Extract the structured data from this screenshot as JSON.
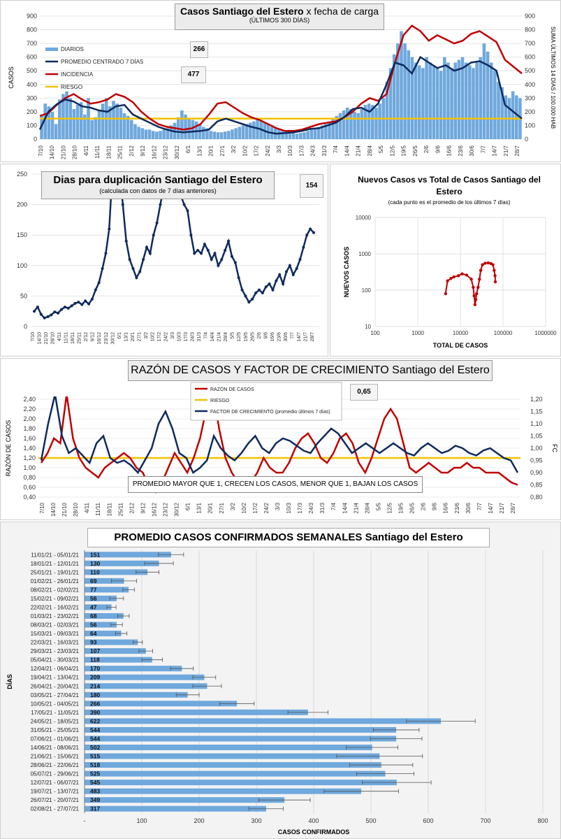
{
  "chart_data": [
    {
      "id": "chart1",
      "type": "bar",
      "title_bold": "Casos Santiago del Estero",
      "title_rest": " x fecha de carga",
      "subtitle": "(ÚLTIMOS 300 DÍAS)",
      "ylabel": "CASOS",
      "y2label": "SUMA ÚLTIMOS 14 DÍAS / 100.000 HAB",
      "ylim": [
        0,
        900
      ],
      "yticks": [
        "0",
        "100",
        "200",
        "300",
        "400",
        "500",
        "600",
        "700",
        "800",
        "900"
      ],
      "legend": [
        "DIARIOS",
        "PROMEDIO CENTRADO 7 DÍAS",
        "INCIDENCIA",
        "RIESGO"
      ],
      "value_boxes": [
        "266",
        "477"
      ],
      "x_labels": [
        "7/10",
        "14/10",
        "21/10",
        "28/10",
        "4/11",
        "11/11",
        "18/11",
        "25/11",
        "2/12",
        "9/12",
        "16/12",
        "23/12",
        "30/12",
        "6/1",
        "13/1",
        "20/1",
        "27/1",
        "3/2",
        "10/2",
        "17/2",
        "24/2",
        "3/3",
        "10/3",
        "17/3",
        "24/3",
        "31/3",
        "7/4",
        "14/4",
        "21/4",
        "28/4",
        "5/5",
        "12/5",
        "19/5",
        "26/5",
        "2/6",
        "9/6",
        "16/6",
        "23/6",
        "30/6",
        "7/7",
        "14/7",
        "21/7",
        "28/7"
      ],
      "series": [
        {
          "name": "PROMEDIO CENTRADO 7 DÍAS",
          "color": "#0f2a5e",
          "values": [
            70,
            200,
            255,
            290,
            275,
            240,
            230,
            210,
            200,
            240,
            250,
            180,
            150,
            120,
            90,
            70,
            55,
            50,
            55,
            60,
            70,
            130,
            150,
            130,
            110,
            90,
            75,
            50,
            40,
            45,
            50,
            60,
            75,
            80,
            100,
            120,
            160,
            220,
            230,
            200,
            260,
            400,
            560,
            540,
            480,
            600,
            560,
            520,
            540,
            500,
            520,
            560,
            570,
            540,
            500,
            250,
            200,
            150
          ]
        },
        {
          "name": "INCIDENCIA",
          "color": "#c00000",
          "values": [
            170,
            190,
            250,
            300,
            330,
            290,
            260,
            270,
            290,
            330,
            310,
            270,
            200,
            150,
            110,
            90,
            80,
            70,
            80,
            110,
            180,
            260,
            270,
            230,
            190,
            160,
            140,
            110,
            80,
            60,
            60,
            70,
            90,
            110,
            120,
            130,
            160,
            200,
            260,
            300,
            280,
            330,
            560,
            760,
            830,
            790,
            720,
            760,
            730,
            700,
            720,
            770,
            790,
            750,
            710,
            580,
            530,
            480
          ]
        },
        {
          "name": "RIESGO",
          "color": "#f2c200",
          "values": [
            150,
            150
          ]
        }
      ],
      "daily": [
        170,
        260,
        240,
        200,
        110,
        290,
        330,
        350,
        300,
        220,
        250,
        270,
        180,
        300,
        140,
        160,
        210,
        260,
        300,
        240,
        280,
        260,
        230,
        190,
        170,
        140,
        110,
        90,
        80,
        70,
        70,
        60,
        55,
        60,
        70,
        80,
        100,
        120,
        160,
        210,
        180,
        150,
        140,
        130,
        110,
        90,
        80,
        60,
        55,
        50,
        50,
        55,
        60,
        70,
        80,
        90,
        100,
        110,
        120,
        130,
        150,
        140,
        120,
        110,
        90,
        80,
        70,
        60,
        55,
        50,
        45,
        40,
        45,
        50,
        60,
        70,
        80,
        90,
        100,
        110,
        130,
        150,
        170,
        190,
        210,
        230,
        220,
        200,
        190,
        220,
        250,
        260,
        250,
        230,
        260,
        300,
        420,
        520,
        620,
        700,
        790,
        700,
        650,
        600,
        560,
        540,
        520,
        600,
        560,
        540,
        520,
        500,
        600,
        560,
        520,
        560,
        580,
        600,
        560,
        540,
        520,
        560,
        600,
        700,
        640,
        560,
        500,
        420,
        380,
        320,
        300,
        350,
        320,
        300
      ]
    },
    {
      "id": "chart2",
      "type": "line",
      "title": "Dias para duplicación Santiago del Estero",
      "subtitle": "(calculada con datos de 7 días anteriores)",
      "value_box": "154",
      "ylim": [
        0,
        250
      ],
      "yticks": [
        "0",
        "50",
        "100",
        "150",
        "200",
        "250"
      ],
      "x_labels": [
        "7/10",
        "14/10",
        "21/10",
        "28/10",
        "4/11",
        "11/11",
        "18/11",
        "25/11",
        "2/12",
        "9/12",
        "16/12",
        "23/12",
        "30/12",
        "6/1",
        "13/1",
        "20/1",
        "27/1",
        "3/2",
        "10/2",
        "17/2",
        "24/2",
        "3/3",
        "10/3",
        "17/3",
        "24/3",
        "31/3",
        "7/4",
        "14/4",
        "21/4",
        "28/4",
        "5/5",
        "12/5",
        "19/5",
        "26/5",
        "2/6",
        "9/6",
        "16/6",
        "23/6",
        "30/6",
        "7/7",
        "14/7",
        "21/7",
        "28/7"
      ],
      "color": "#0f2a5e",
      "values": [
        25,
        32,
        20,
        14,
        16,
        19,
        24,
        22,
        28,
        32,
        30,
        34,
        38,
        40,
        36,
        42,
        37,
        45,
        60,
        72,
        95,
        120,
        160,
        260,
        300,
        260,
        200,
        140,
        110,
        95,
        80,
        90,
        110,
        130,
        120,
        150,
        170,
        200,
        230,
        260,
        280,
        260,
        240,
        215,
        200,
        190,
        150,
        120,
        125,
        120,
        135,
        125,
        110,
        120,
        100,
        110,
        125,
        140,
        115,
        105,
        80,
        60,
        50,
        40,
        45,
        55,
        60,
        55,
        65,
        70,
        60,
        75,
        85,
        70,
        90,
        100,
        85,
        95,
        110,
        130,
        150,
        160,
        154
      ]
    },
    {
      "id": "chart3",
      "type": "scatter",
      "title": "Nuevos Casos vs Total de Casos Santiago del Estero",
      "subtitle": "(cada punto es el promedio de los últimos 7 días)",
      "xlabel": "TOTAL DE CASOS",
      "ylabel": "NUEVOS CASOS",
      "x_scale": "log",
      "y_scale": "log",
      "xlim": [
        100,
        1000000
      ],
      "ylim": [
        10,
        10000
      ],
      "xticks": [
        "100",
        "1000",
        "10000",
        "100000",
        "1000000"
      ],
      "yticks": [
        "10",
        "100",
        "1000",
        "10000"
      ],
      "color": "#c00000",
      "points": [
        [
          4500,
          80
        ],
        [
          5000,
          180
        ],
        [
          6000,
          210
        ],
        [
          7000,
          230
        ],
        [
          9000,
          250
        ],
        [
          11000,
          280
        ],
        [
          14000,
          260
        ],
        [
          18000,
          200
        ],
        [
          20000,
          120
        ],
        [
          21000,
          70
        ],
        [
          22000,
          40
        ],
        [
          23000,
          55
        ],
        [
          24000,
          80
        ],
        [
          26000,
          120
        ],
        [
          28000,
          200
        ],
        [
          30000,
          350
        ],
        [
          33000,
          500
        ],
        [
          38000,
          550
        ],
        [
          45000,
          560
        ],
        [
          52000,
          540
        ],
        [
          58000,
          500
        ],
        [
          62000,
          350
        ],
        [
          65000,
          250
        ],
        [
          66000,
          170
        ]
      ]
    },
    {
      "id": "chart4",
      "type": "line",
      "title_main": "RAZÓN DE CASOS Y FACTOR DE CRECIMIENTO",
      "title_rest": " Santiago del Estero",
      "ylabel": "RAZÓN DE CASOS",
      "y2label": "FC",
      "value_box": "0,65",
      "annotation": "PROMEDIO MAYOR QUE 1, CRECEN LOS CASOS, MENOR QUE 1, BAJAN LOS CASOS",
      "ylim": [
        0.4,
        2.4
      ],
      "yticks": [
        "0,40",
        "0,60",
        "0,80",
        "1,00",
        "1,20",
        "1,40",
        "1,60",
        "1,80",
        "2,00",
        "2,20",
        "2,40"
      ],
      "y2lim": [
        0.8,
        1.2
      ],
      "y2ticks": [
        "0,80",
        "0,85",
        "0,90",
        "0,95",
        "1,00",
        "1,05",
        "1,10",
        "1,15",
        "1,20"
      ],
      "legend": [
        "RAZÓN DE CASOS",
        "RIESGO",
        "FACTOR DE CRECIMIENTO (promedio últimos 7 días)"
      ],
      "x_labels": [
        "7/10",
        "14/10",
        "21/10",
        "28/10",
        "4/11",
        "11/11",
        "18/11",
        "25/11",
        "2/12",
        "9/12",
        "16/12",
        "23/12",
        "30/12",
        "6/1",
        "13/1",
        "20/1",
        "27/1",
        "3/2",
        "10/2",
        "17/2",
        "24/2",
        "3/3",
        "10/3",
        "17/3",
        "24/3",
        "31/3",
        "7/4",
        "14/4",
        "21/4",
        "28/4",
        "5/5",
        "12/5",
        "19/5",
        "26/5",
        "2/6",
        "9/6",
        "16/6",
        "23/6",
        "30/6",
        "7/7",
        "14/7",
        "21/7",
        "28/7"
      ],
      "series": [
        {
          "name": "RAZÓN DE CASOS",
          "color": "#c00000",
          "axis": "left",
          "values": [
            1.1,
            1.3,
            1.6,
            1.5,
            2.5,
            1.6,
            1.2,
            1.0,
            0.9,
            0.8,
            1.0,
            1.1,
            1.2,
            1.3,
            1.2,
            1.0,
            0.9,
            0.6,
            0.5,
            0.7,
            1.0,
            1.3,
            1.1,
            0.9,
            1.2,
            1.6,
            2.2,
            2.6,
            1.8,
            1.2,
            0.9,
            0.7,
            0.6,
            0.7,
            0.9,
            1.2,
            1.0,
            0.9,
            0.9,
            1.1,
            1.4,
            1.6,
            1.7,
            1.5,
            1.2,
            1.1,
            1.3,
            1.6,
            1.7,
            1.5,
            1.1,
            0.9,
            1.2,
            1.6,
            2.0,
            2.2,
            2.0,
            1.5,
            1.0,
            0.9,
            1.0,
            1.1,
            1.0,
            0.9,
            0.9,
            1.0,
            1.0,
            1.1,
            1.0,
            1.0,
            0.9,
            0.9,
            0.9,
            0.8,
            0.7,
            0.65
          ]
        },
        {
          "name": "FACTOR DE CRECIMIENTO (promedio últimos 7 días)",
          "color": "#0f2a5e",
          "axis": "right",
          "values": [
            0.95,
            1.1,
            1.22,
            1.05,
            0.98,
            1.0,
            0.97,
            0.94,
            1.02,
            1.05,
            0.96,
            0.94,
            0.95,
            0.93,
            0.9,
            0.95,
            1.0,
            1.1,
            1.15,
            1.08,
            0.98,
            0.96,
            0.9,
            0.92,
            0.95,
            1.05,
            1.0,
            0.97,
            0.95,
            0.98,
            1.02,
            1.05,
            1.0,
            0.98,
            1.02,
            1.04,
            1.03,
            1.01,
            0.99,
            0.98,
            1.02,
            1.05,
            1.08,
            1.06,
            1.02,
            0.98,
            1.0,
            1.02,
            1.0,
            0.98,
            1.0,
            1.02,
            1.0,
            0.98,
            0.97,
            1.0,
            1.02,
            1.0,
            0.98,
            0.99,
            1.01,
            1.0,
            0.98,
            0.97,
            0.99,
            1.0,
            0.98,
            0.96,
            0.95,
            0.9
          ]
        },
        {
          "name": "RIESGO",
          "color": "#f2c200",
          "axis": "left",
          "values": [
            1.2,
            1.2
          ]
        }
      ]
    },
    {
      "id": "chart5",
      "type": "bar",
      "orientation": "horizontal",
      "title": "PROMEDIO CASOS CONFIRMADOS SEMANALES Santiago del Estero",
      "xlabel": "CASOS CONFIRMADOS",
      "ylabel": "DÍAS",
      "xlim": [
        0,
        800
      ],
      "xticks": [
        "-",
        "100",
        "200",
        "300",
        "400",
        "500",
        "600",
        "700",
        "800"
      ],
      "bar_color": "#6fa8dc",
      "categories": [
        "11/01/21 - 05/01/21",
        "18/01/21 - 12/01/21",
        "25/01/21 - 19/01/21",
        "01/02/21 - 26/01/21",
        "08/02/21 - 02/02/21",
        "15/02/21 - 09/02/21",
        "22/02/21 - 16/02/21",
        "01/03/21 - 23/02/21",
        "08/03/21 - 02/03/21",
        "15/03/21 - 09/03/21",
        "22/03/21 - 16/03/21",
        "29/03/21 - 23/03/21",
        "05/04/21 - 30/03/21",
        "12/04/21 - 06/04/21",
        "19/04/21 - 13/04/21",
        "26/04/21 - 20/04/21",
        "03/05/21 - 27/04/21",
        "10/05/21 - 04/05/21",
        "17/05/21 - 11/05/21",
        "24/05/21 - 18/05/21",
        "31/05/21 - 25/05/21",
        "07/06/21 - 01/06/21",
        "14/06/21 - 08/06/21",
        "21/06/21 - 15/06/21",
        "28/06/21 - 22/06/21",
        "05/07/21 - 29/06/21",
        "12/07/21 - 06/07/21",
        "19/07/21 - 13/07/21",
        "26/07/21 - 20/07/21",
        "02/08/21 - 27/07/21"
      ],
      "values": [
        151,
        130,
        110,
        69,
        77,
        56,
        47,
        68,
        56,
        64,
        93,
        107,
        118,
        170,
        209,
        214,
        180,
        266,
        390,
        622,
        544,
        544,
        502,
        515,
        518,
        525,
        545,
        483,
        349,
        317
      ],
      "errors": [
        22,
        25,
        20,
        22,
        10,
        12,
        8,
        10,
        10,
        10,
        8,
        12,
        18,
        20,
        20,
        25,
        20,
        30,
        35,
        60,
        40,
        45,
        45,
        75,
        55,
        50,
        60,
        65,
        45,
        30
      ]
    }
  ]
}
